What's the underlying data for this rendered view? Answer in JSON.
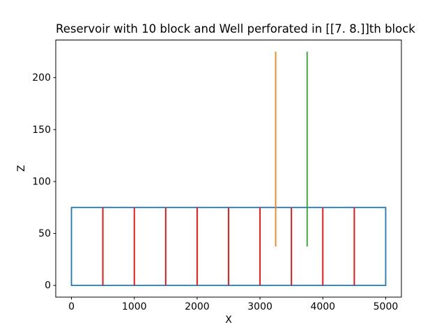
{
  "chart_data": {
    "type": "line",
    "title": "Reservoir with 10 block and Well perforated in [[7. 8.]]th block",
    "xlabel": "X",
    "ylabel": "Z",
    "xlim": [
      -250,
      5250
    ],
    "ylim": [
      -11.25,
      236.25
    ],
    "xticks": [
      0,
      1000,
      2000,
      3000,
      4000,
      5000
    ],
    "yticks": [
      0,
      50,
      100,
      150,
      200
    ],
    "grid": false,
    "legend": null,
    "axis_color": "#000000",
    "background": "#ffffff",
    "series": [
      {
        "name": "reservoir-outline",
        "type": "rect",
        "x0": 0,
        "x1": 5000,
        "z0": 0,
        "z1": 75,
        "color": "#1f77b4"
      },
      {
        "name": "block-boundary-line",
        "type": "vlines",
        "x": [
          500,
          1000,
          1500,
          2000,
          2500,
          3000,
          3500,
          4000,
          4500
        ],
        "z0": 0,
        "z1": 75,
        "color": "#ff0000"
      },
      {
        "name": "well-block-7-line",
        "type": "vline",
        "x": 3250,
        "z0": 37.5,
        "z1": 225,
        "color": "#ff7f0e"
      },
      {
        "name": "well-block-8-line",
        "type": "vline",
        "x": 3750,
        "z0": 37.5,
        "z1": 225,
        "color": "#2ca02c"
      }
    ]
  }
}
